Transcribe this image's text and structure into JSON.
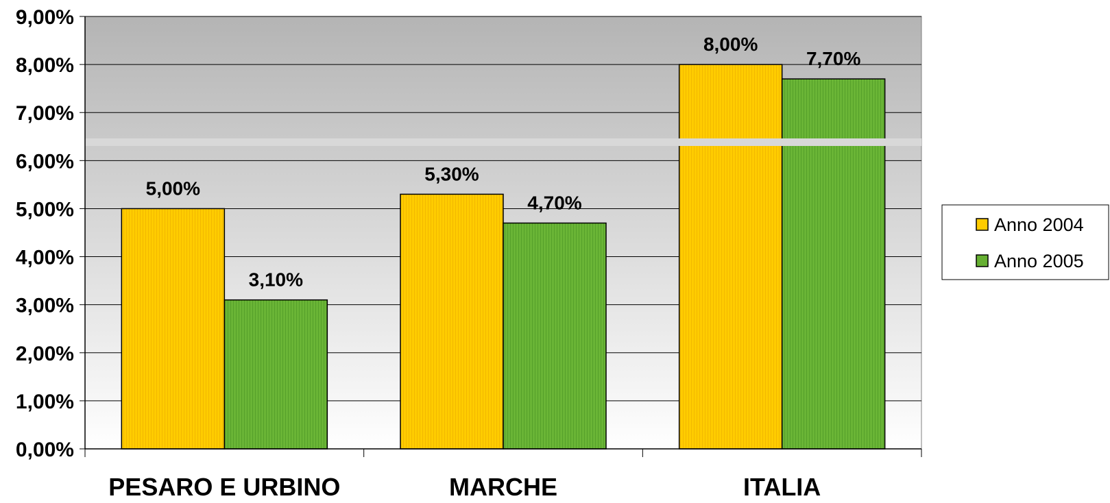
{
  "chart_data": {
    "type": "bar",
    "categories": [
      "PESARO E URBINO",
      "MARCHE",
      "ITALIA"
    ],
    "series": [
      {
        "name": "Anno 2004",
        "values": [
          5.0,
          5.3,
          8.0
        ],
        "labels": [
          "5,00%",
          "5,30%",
          "8,00%"
        ],
        "color": "#ffcc00"
      },
      {
        "name": "Anno 2005",
        "values": [
          3.1,
          4.7,
          7.7
        ],
        "labels": [
          "3,10%",
          "4,70%",
          "7,70%"
        ],
        "color": "#66b032"
      }
    ],
    "ylim": [
      0,
      9
    ],
    "yticks": [
      "0,00%",
      "1,00%",
      "2,00%",
      "3,00%",
      "4,00%",
      "5,00%",
      "6,00%",
      "7,00%",
      "8,00%",
      "9,00%"
    ],
    "grid": true,
    "legend_position": "right",
    "background": "gradient gray to white"
  }
}
